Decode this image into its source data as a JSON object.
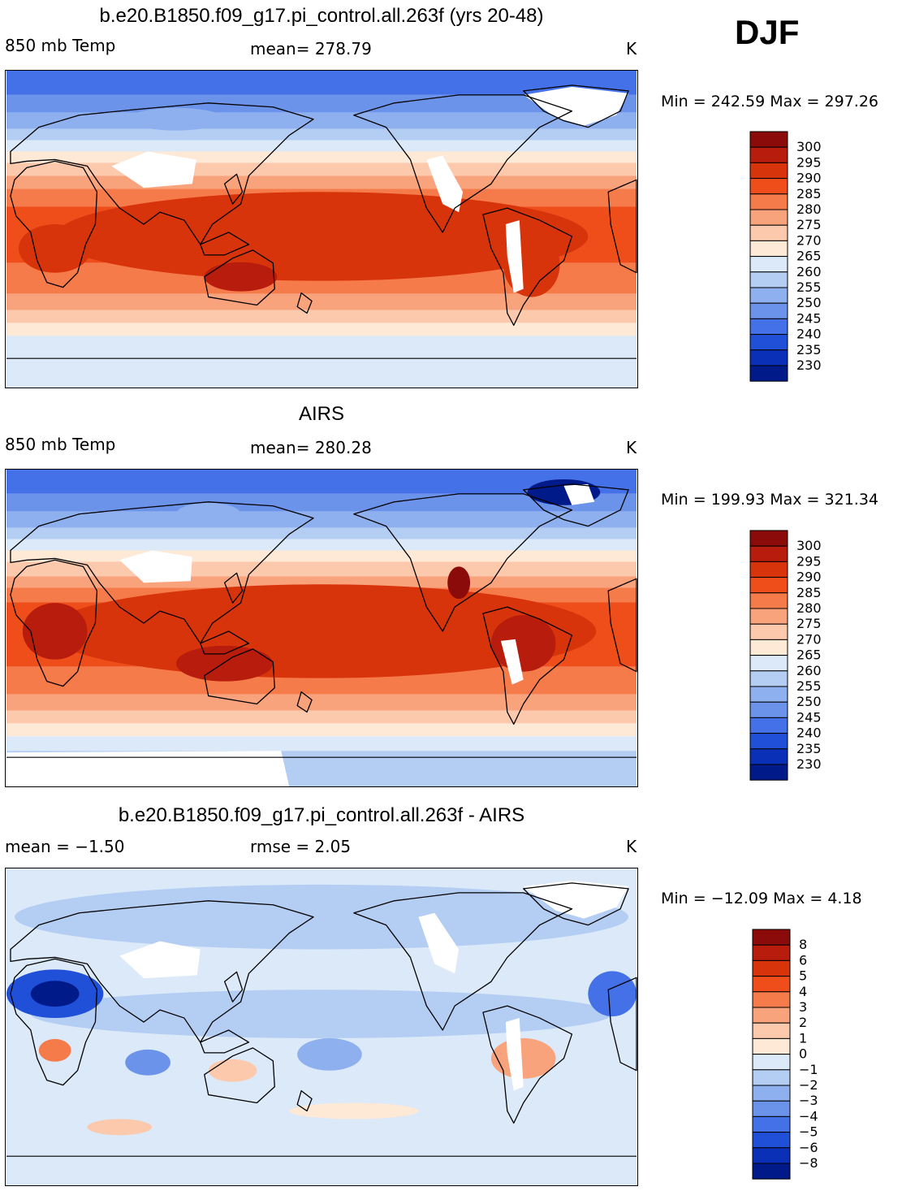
{
  "season": "DJF",
  "units": "K",
  "panels": [
    {
      "title": "b.e20.B1850.f09_g17.pi_control.all.263f (yrs 20-48)",
      "left_label": "850 mb Temp",
      "center_label": "mean=  278.79",
      "right_label": "K",
      "minmax": "Min = 242.59 Max = 297.26"
    },
    {
      "title": "AIRS",
      "left_label": "850 mb Temp",
      "center_label": "mean=  280.28",
      "right_label": "K",
      "minmax": "Min = 199.93 Max = 321.34"
    },
    {
      "title": "b.e20.B1850.f09_g17.pi_control.all.263f - AIRS",
      "left_label": "mean =   −1.50",
      "center_label": "rmse =    2.05",
      "right_label": "K",
      "minmax": "Min = −12.09 Max =    4.18"
    }
  ],
  "chart_data": [
    {
      "type": "heatmap",
      "title": "b.e20.B1850.f09_g17.pi_control.all.263f (yrs 20-48)",
      "variable": "850 mb Temp",
      "units": "K",
      "mean": 278.79,
      "min": 242.59,
      "max": 297.26,
      "colorbar_levels": [
        300,
        295,
        290,
        285,
        280,
        275,
        270,
        265,
        260,
        255,
        250,
        245,
        240,
        235,
        230
      ]
    },
    {
      "type": "heatmap",
      "title": "AIRS",
      "variable": "850 mb Temp",
      "units": "K",
      "mean": 280.28,
      "min": 199.93,
      "max": 321.34,
      "colorbar_levels": [
        300,
        295,
        290,
        285,
        280,
        275,
        270,
        265,
        260,
        255,
        250,
        245,
        240,
        235,
        230
      ]
    },
    {
      "type": "heatmap",
      "title": "b.e20.B1850.f09_g17.pi_control.all.263f - AIRS",
      "units": "K",
      "mean": -1.5,
      "rmse": 2.05,
      "min": -12.09,
      "max": 4.18,
      "colorbar_levels": [
        "8",
        "6",
        "5",
        "4",
        "3",
        "2",
        "1",
        "0",
        "−1",
        "−2",
        "−3",
        "−4",
        "−5",
        "−6",
        "−8"
      ]
    }
  ],
  "colorbar_colors": [
    "#8b0a0a",
    "#b71c0c",
    "#d8340c",
    "#ef4e1a",
    "#f67b4b",
    "#f9a37d",
    "#fcc9ad",
    "#fde9d6",
    "#dbe9f8",
    "#b4cdf3",
    "#8eb0ee",
    "#6b93ea",
    "#4471e8",
    "#2050d8",
    "#0b30b8",
    "#001a8a"
  ]
}
